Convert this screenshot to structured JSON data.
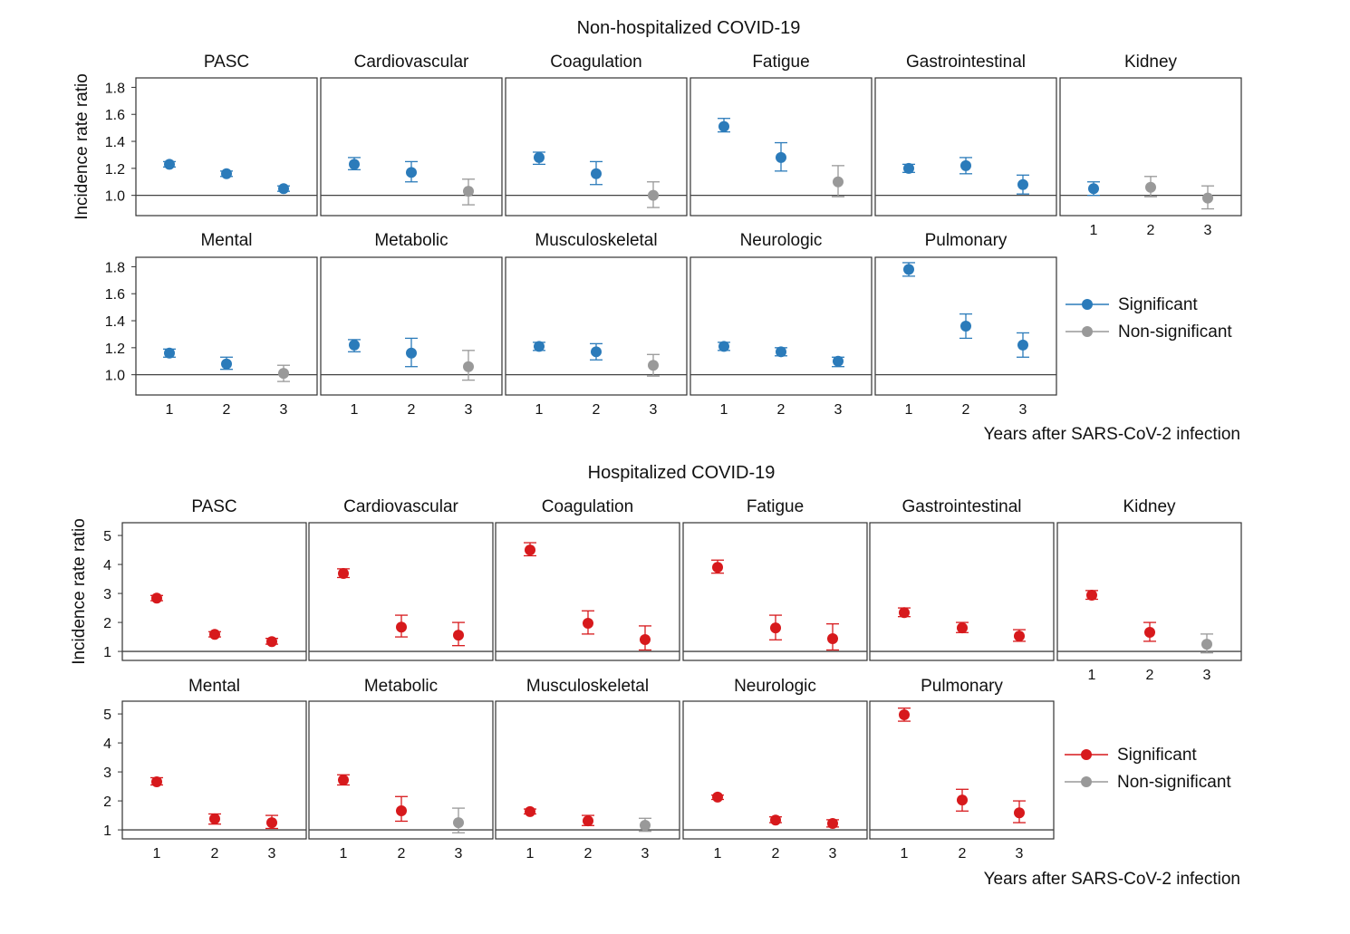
{
  "chart_data": [
    {
      "type": "scatter",
      "title": "Non-hospitalized COVID-19",
      "ylabel": "Incidence rate ratio",
      "xlabel": "Years after SARS-CoV-2 infection",
      "x_ticks": [
        "1",
        "2",
        "3"
      ],
      "y_ticks": [
        "1.0",
        "1.2",
        "1.4",
        "1.6",
        "1.8"
      ],
      "y_tick_values": [
        1.0,
        1.2,
        1.4,
        1.6,
        1.8
      ],
      "ylim": [
        0.85,
        1.87
      ],
      "reference_line": 1.0,
      "colors": {
        "significant": "#2b7bba",
        "non_significant": "#999999"
      },
      "legend": {
        "significant": "Significant",
        "non_significant": "Non-significant",
        "placement": "right"
      },
      "point_format": [
        "year",
        "ratio",
        "ci_low",
        "ci_high",
        "significant"
      ],
      "panels": [
        {
          "name": "PASC",
          "points": [
            [
              1,
              1.23,
              1.21,
              1.25,
              true
            ],
            [
              2,
              1.16,
              1.14,
              1.18,
              true
            ],
            [
              3,
              1.05,
              1.03,
              1.07,
              true
            ]
          ]
        },
        {
          "name": "Cardiovascular",
          "points": [
            [
              1,
              1.23,
              1.19,
              1.28,
              true
            ],
            [
              2,
              1.17,
              1.1,
              1.25,
              true
            ],
            [
              3,
              1.03,
              0.93,
              1.12,
              false
            ]
          ]
        },
        {
          "name": "Coagulation",
          "points": [
            [
              1,
              1.28,
              1.23,
              1.32,
              true
            ],
            [
              2,
              1.16,
              1.08,
              1.25,
              true
            ],
            [
              3,
              1.0,
              0.91,
              1.1,
              false
            ]
          ]
        },
        {
          "name": "Fatigue",
          "points": [
            [
              1,
              1.51,
              1.47,
              1.57,
              true
            ],
            [
              2,
              1.28,
              1.18,
              1.39,
              true
            ],
            [
              3,
              1.1,
              0.99,
              1.22,
              false
            ]
          ]
        },
        {
          "name": "Gastrointestinal",
          "points": [
            [
              1,
              1.2,
              1.17,
              1.23,
              true
            ],
            [
              2,
              1.22,
              1.16,
              1.28,
              true
            ],
            [
              3,
              1.08,
              1.01,
              1.15,
              true
            ]
          ]
        },
        {
          "name": "Kidney",
          "points": [
            [
              1,
              1.05,
              1.0,
              1.1,
              true
            ],
            [
              2,
              1.06,
              0.99,
              1.14,
              false
            ],
            [
              3,
              0.98,
              0.9,
              1.07,
              false
            ]
          ]
        },
        {
          "name": "Mental",
          "points": [
            [
              1,
              1.16,
              1.13,
              1.19,
              true
            ],
            [
              2,
              1.08,
              1.04,
              1.13,
              true
            ],
            [
              3,
              1.01,
              0.95,
              1.07,
              false
            ]
          ]
        },
        {
          "name": "Metabolic",
          "points": [
            [
              1,
              1.22,
              1.17,
              1.26,
              true
            ],
            [
              2,
              1.16,
              1.06,
              1.27,
              true
            ],
            [
              3,
              1.06,
              0.96,
              1.18,
              false
            ]
          ]
        },
        {
          "name": "Musculoskeletal",
          "points": [
            [
              1,
              1.21,
              1.18,
              1.24,
              true
            ],
            [
              2,
              1.17,
              1.11,
              1.23,
              true
            ],
            [
              3,
              1.07,
              0.99,
              1.15,
              false
            ]
          ]
        },
        {
          "name": "Neurologic",
          "points": [
            [
              1,
              1.21,
              1.18,
              1.24,
              true
            ],
            [
              2,
              1.17,
              1.14,
              1.2,
              true
            ],
            [
              3,
              1.1,
              1.06,
              1.13,
              true
            ]
          ]
        },
        {
          "name": "Pulmonary",
          "points": [
            [
              1,
              1.78,
              1.73,
              1.83,
              true
            ],
            [
              2,
              1.36,
              1.27,
              1.45,
              true
            ],
            [
              3,
              1.22,
              1.13,
              1.31,
              true
            ]
          ]
        }
      ]
    },
    {
      "type": "scatter",
      "title": "Hospitalized COVID-19",
      "ylabel": "Incidence rate ratio",
      "xlabel": "Years after SARS-CoV-2 infection",
      "x_ticks": [
        "1",
        "2",
        "3"
      ],
      "y_ticks": [
        "1",
        "2",
        "3",
        "4",
        "5"
      ],
      "y_tick_values": [
        1,
        2,
        3,
        4,
        5
      ],
      "ylim": [
        0.69,
        5.44
      ],
      "reference_line": 1.0,
      "colors": {
        "significant": "#d7191c",
        "non_significant": "#999999"
      },
      "legend": {
        "significant": "Significant",
        "non_significant": "Non-significant",
        "placement": "right"
      },
      "point_format": [
        "year",
        "ratio",
        "ci_low",
        "ci_high",
        "significant"
      ],
      "panels": [
        {
          "name": "PASC",
          "points": [
            [
              1,
              2.84,
              2.75,
              2.93,
              true
            ],
            [
              2,
              1.59,
              1.5,
              1.68,
              true
            ],
            [
              3,
              1.34,
              1.25,
              1.45,
              true
            ]
          ]
        },
        {
          "name": "Cardiovascular",
          "points": [
            [
              1,
              3.69,
              3.55,
              3.85,
              true
            ],
            [
              2,
              1.84,
              1.5,
              2.25,
              true
            ],
            [
              3,
              1.56,
              1.2,
              2.0,
              true
            ]
          ]
        },
        {
          "name": "Coagulation",
          "points": [
            [
              1,
              4.5,
              4.3,
              4.75,
              true
            ],
            [
              2,
              1.97,
              1.6,
              2.4,
              true
            ],
            [
              3,
              1.41,
              1.05,
              1.88,
              true
            ]
          ]
        },
        {
          "name": "Fatigue",
          "points": [
            [
              1,
              3.9,
              3.7,
              4.15,
              true
            ],
            [
              2,
              1.81,
              1.4,
              2.25,
              true
            ],
            [
              3,
              1.44,
              1.05,
              1.95,
              true
            ]
          ]
        },
        {
          "name": "Gastrointestinal",
          "points": [
            [
              1,
              2.34,
              2.2,
              2.5,
              true
            ],
            [
              2,
              1.81,
              1.65,
              2.0,
              true
            ],
            [
              3,
              1.53,
              1.35,
              1.75,
              true
            ]
          ]
        },
        {
          "name": "Kidney",
          "points": [
            [
              1,
              2.94,
              2.8,
              3.1,
              true
            ],
            [
              2,
              1.66,
              1.35,
              2.0,
              true
            ],
            [
              3,
              1.25,
              0.95,
              1.6,
              false
            ]
          ]
        },
        {
          "name": "Mental",
          "points": [
            [
              1,
              2.66,
              2.55,
              2.8,
              true
            ],
            [
              2,
              1.38,
              1.2,
              1.55,
              true
            ],
            [
              3,
              1.25,
              1.05,
              1.5,
              true
            ]
          ]
        },
        {
          "name": "Metabolic",
          "points": [
            [
              1,
              2.72,
              2.55,
              2.9,
              true
            ],
            [
              2,
              1.66,
              1.3,
              2.15,
              true
            ],
            [
              3,
              1.25,
              0.9,
              1.75,
              false
            ]
          ]
        },
        {
          "name": "Musculoskeletal",
          "points": [
            [
              1,
              1.63,
              1.55,
              1.72,
              true
            ],
            [
              2,
              1.31,
              1.15,
              1.5,
              true
            ],
            [
              3,
              1.16,
              0.95,
              1.4,
              false
            ]
          ]
        },
        {
          "name": "Neurologic",
          "points": [
            [
              1,
              2.13,
              2.05,
              2.2,
              true
            ],
            [
              2,
              1.34,
              1.25,
              1.45,
              true
            ],
            [
              3,
              1.22,
              1.1,
              1.35,
              true
            ]
          ]
        },
        {
          "name": "Pulmonary",
          "points": [
            [
              1,
              4.97,
              4.75,
              5.2,
              true
            ],
            [
              2,
              2.03,
              1.65,
              2.4,
              true
            ],
            [
              3,
              1.59,
              1.25,
              2.0,
              true
            ]
          ]
        }
      ]
    }
  ]
}
